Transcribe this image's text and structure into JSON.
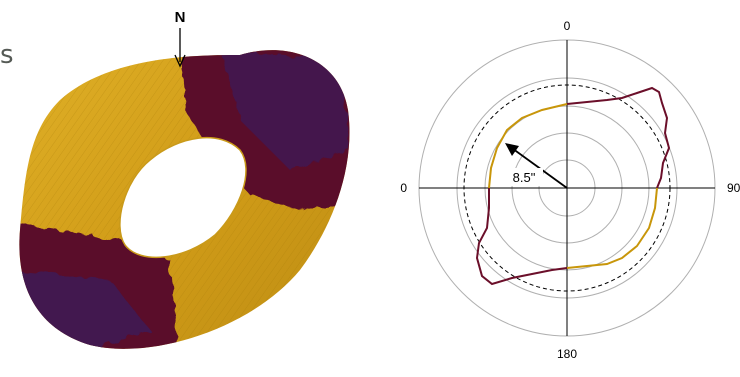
{
  "left_figure": {
    "cut_letter": "s",
    "north_label": "N",
    "colors": {
      "gold": "#d6a21c",
      "gold_dark": "#b8840f",
      "dark_red": "#5a0f2a",
      "purple": "#3b1a5c"
    }
  },
  "polar_plot": {
    "angle_labels": {
      "top": "0",
      "right": "90",
      "bottom": "180",
      "left": "0"
    },
    "radius_label": "8.5\"",
    "colors": {
      "trace_gold": "#c8960a",
      "trace_dark": "#6b0f2a",
      "grid": "#b0b0b0",
      "axis": "#000000"
    }
  }
}
